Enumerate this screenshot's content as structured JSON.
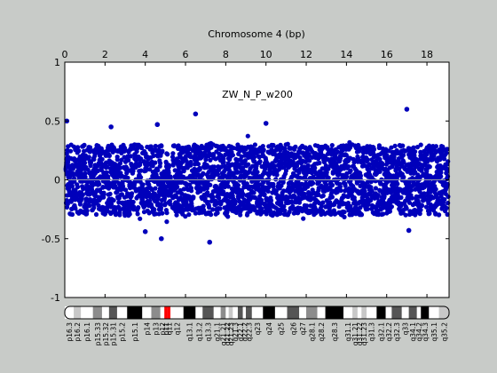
{
  "chart_data": {
    "type": "scatter",
    "title": "Chromosome 4 (bp)",
    "annotation": "ZW_N_P_w200",
    "x_axis": {
      "range": [
        0,
        19.1
      ],
      "ticks": [
        0,
        2,
        4,
        6,
        8,
        10,
        12,
        14,
        16,
        18
      ],
      "tick_labels": [
        "0",
        "2",
        "4",
        "6",
        "8",
        "10",
        "12",
        "14",
        "16",
        "18"
      ],
      "position": "top"
    },
    "y_axis": {
      "range": [
        -1,
        1
      ],
      "ticks": [
        -1,
        -0.5,
        0,
        0.5,
        1
      ],
      "tick_labels": [
        "-1",
        "-0.5",
        "0",
        "0.5",
        "1"
      ]
    },
    "baseline": 0,
    "grid": false,
    "marker_color": "#0000bb",
    "baseline_color": "#9aa0a6",
    "point_cloud": {
      "x_start": 0.05,
      "x_end": 19.05,
      "band_low": -0.3,
      "band_high": 0.3,
      "dip_center": 5.1,
      "dip_width": 0.25
    },
    "notable_points": [
      {
        "x": 0.1,
        "y": 0.5
      },
      {
        "x": 2.3,
        "y": 0.45
      },
      {
        "x": 4.6,
        "y": 0.47
      },
      {
        "x": 6.5,
        "y": 0.56
      },
      {
        "x": 10.0,
        "y": 0.48
      },
      {
        "x": 17.0,
        "y": 0.6
      },
      {
        "x": 4.0,
        "y": -0.44
      },
      {
        "x": 4.8,
        "y": -0.5
      },
      {
        "x": 7.2,
        "y": -0.53
      },
      {
        "x": 17.1,
        "y": -0.43
      }
    ],
    "ideogram": {
      "centromere_color": "#ff0000",
      "bands": [
        {
          "name": "p16.3",
          "start": 0.0,
          "end": 0.45,
          "stain": "gneg"
        },
        {
          "name": "p16.2",
          "start": 0.45,
          "end": 0.8,
          "stain": "gpos25"
        },
        {
          "name": "p16.1",
          "start": 0.8,
          "end": 1.4,
          "stain": "gneg"
        },
        {
          "name": "p15.33",
          "start": 1.4,
          "end": 1.85,
          "stain": "gpos50"
        },
        {
          "name": "p15.32",
          "start": 1.85,
          "end": 2.2,
          "stain": "gneg"
        },
        {
          "name": "p15.31",
          "start": 2.2,
          "end": 2.6,
          "stain": "gpos75"
        },
        {
          "name": "p15.2",
          "start": 2.6,
          "end": 3.1,
          "stain": "gneg"
        },
        {
          "name": "p15.1",
          "start": 3.1,
          "end": 3.85,
          "stain": "gpos100"
        },
        {
          "name": "p14",
          "start": 3.85,
          "end": 4.3,
          "stain": "gneg"
        },
        {
          "name": "p13",
          "start": 4.3,
          "end": 4.75,
          "stain": "gpos50"
        },
        {
          "name": "p12",
          "start": 4.75,
          "end": 4.95,
          "stain": "gneg"
        },
        {
          "name": "p11",
          "start": 4.95,
          "end": 5.1,
          "stain": "acen"
        },
        {
          "name": "q11",
          "start": 5.1,
          "end": 5.25,
          "stain": "acen"
        },
        {
          "name": "q12",
          "start": 5.25,
          "end": 5.9,
          "stain": "gneg"
        },
        {
          "name": "q13.1",
          "start": 5.9,
          "end": 6.5,
          "stain": "gpos100"
        },
        {
          "name": "q13.2",
          "start": 6.5,
          "end": 6.85,
          "stain": "gneg"
        },
        {
          "name": "q13.3",
          "start": 6.85,
          "end": 7.4,
          "stain": "gpos75"
        },
        {
          "name": "q21.1",
          "start": 7.4,
          "end": 7.75,
          "stain": "gneg"
        },
        {
          "name": "q21.21",
          "start": 7.75,
          "end": 8.0,
          "stain": "gpos50"
        },
        {
          "name": "q21.22",
          "start": 8.0,
          "end": 8.15,
          "stain": "gneg"
        },
        {
          "name": "q21.23",
          "start": 8.15,
          "end": 8.35,
          "stain": "gpos25"
        },
        {
          "name": "q21.3",
          "start": 8.35,
          "end": 8.6,
          "stain": "gneg"
        },
        {
          "name": "q22.1",
          "start": 8.6,
          "end": 8.85,
          "stain": "gpos75"
        },
        {
          "name": "q22.2",
          "start": 8.85,
          "end": 9.0,
          "stain": "gneg"
        },
        {
          "name": "q22.3",
          "start": 9.0,
          "end": 9.3,
          "stain": "gpos75"
        },
        {
          "name": "q23",
          "start": 9.3,
          "end": 9.85,
          "stain": "gneg"
        },
        {
          "name": "q24",
          "start": 9.85,
          "end": 10.45,
          "stain": "gpos100"
        },
        {
          "name": "q25",
          "start": 10.45,
          "end": 11.05,
          "stain": "gneg"
        },
        {
          "name": "q26",
          "start": 11.05,
          "end": 11.65,
          "stain": "gpos75"
        },
        {
          "name": "q27",
          "start": 11.65,
          "end": 12.0,
          "stain": "gneg"
        },
        {
          "name": "q28.1",
          "start": 12.0,
          "end": 12.55,
          "stain": "gpos50"
        },
        {
          "name": "q28.2",
          "start": 12.55,
          "end": 12.95,
          "stain": "gneg"
        },
        {
          "name": "q28.3",
          "start": 12.95,
          "end": 13.85,
          "stain": "gpos100"
        },
        {
          "name": "q31.1",
          "start": 13.85,
          "end": 14.3,
          "stain": "gneg"
        },
        {
          "name": "q31.21",
          "start": 14.3,
          "end": 14.55,
          "stain": "gpos25"
        },
        {
          "name": "q31.22",
          "start": 14.55,
          "end": 14.75,
          "stain": "gneg"
        },
        {
          "name": "q31.23",
          "start": 14.75,
          "end": 15.0,
          "stain": "gpos25"
        },
        {
          "name": "q31.3",
          "start": 15.0,
          "end": 15.5,
          "stain": "gneg"
        },
        {
          "name": "q32.1",
          "start": 15.5,
          "end": 15.95,
          "stain": "gpos100"
        },
        {
          "name": "q32.2",
          "start": 15.95,
          "end": 16.25,
          "stain": "gneg"
        },
        {
          "name": "q32.3",
          "start": 16.25,
          "end": 16.75,
          "stain": "gpos75"
        },
        {
          "name": "q33",
          "start": 16.75,
          "end": 17.1,
          "stain": "gneg"
        },
        {
          "name": "q34.1",
          "start": 17.1,
          "end": 17.5,
          "stain": "gpos75"
        },
        {
          "name": "q34.2",
          "start": 17.5,
          "end": 17.7,
          "stain": "gneg"
        },
        {
          "name": "q34.3",
          "start": 17.7,
          "end": 18.1,
          "stain": "gpos100"
        },
        {
          "name": "q35.1",
          "start": 18.1,
          "end": 18.6,
          "stain": "gneg"
        },
        {
          "name": "q35.2",
          "start": 18.6,
          "end": 19.1,
          "stain": "gpos25"
        }
      ]
    }
  }
}
